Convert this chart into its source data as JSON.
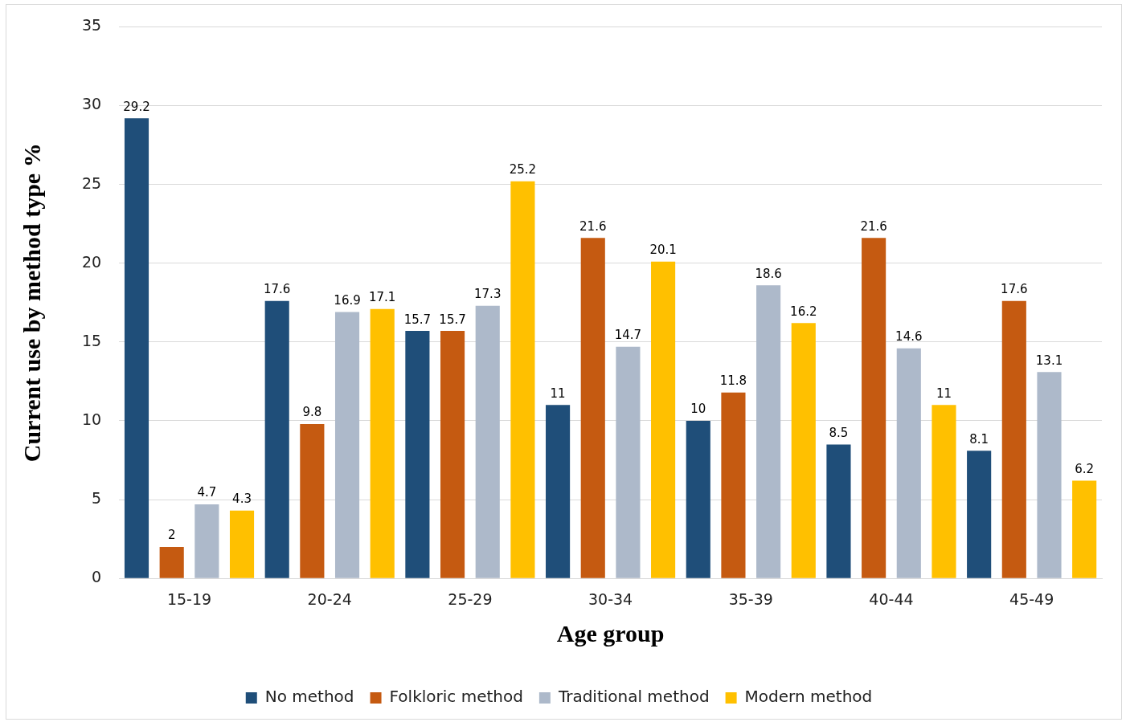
{
  "chart_data": {
    "type": "bar",
    "xlabel": "Age group",
    "ylabel": "Current use by method type %",
    "categories": [
      "15-19",
      "20-24",
      "25-29",
      "30-34",
      "35-39",
      "40-44",
      "45-49"
    ],
    "series": [
      {
        "name": "No method",
        "color": "#1f4e79",
        "values": [
          29.2,
          17.6,
          15.7,
          11,
          10,
          8.5,
          8.1
        ]
      },
      {
        "name": "Folkloric method",
        "color": "#c55a11",
        "values": [
          2,
          9.8,
          15.7,
          21.6,
          11.8,
          21.6,
          17.6
        ]
      },
      {
        "name": "Traditional method",
        "color": "#adb9ca",
        "values": [
          4.7,
          16.9,
          17.3,
          14.7,
          18.6,
          14.6,
          13.1
        ]
      },
      {
        "name": "Modern method",
        "color": "#ffc000",
        "values": [
          4.3,
          17.1,
          25.2,
          20.1,
          16.2,
          11,
          6.2
        ]
      }
    ],
    "ylim": [
      0,
      35
    ],
    "yticks": [
      0,
      5,
      10,
      15,
      20,
      25,
      30,
      35
    ],
    "grid": "y",
    "legend": "bottom",
    "data_labels": true
  }
}
